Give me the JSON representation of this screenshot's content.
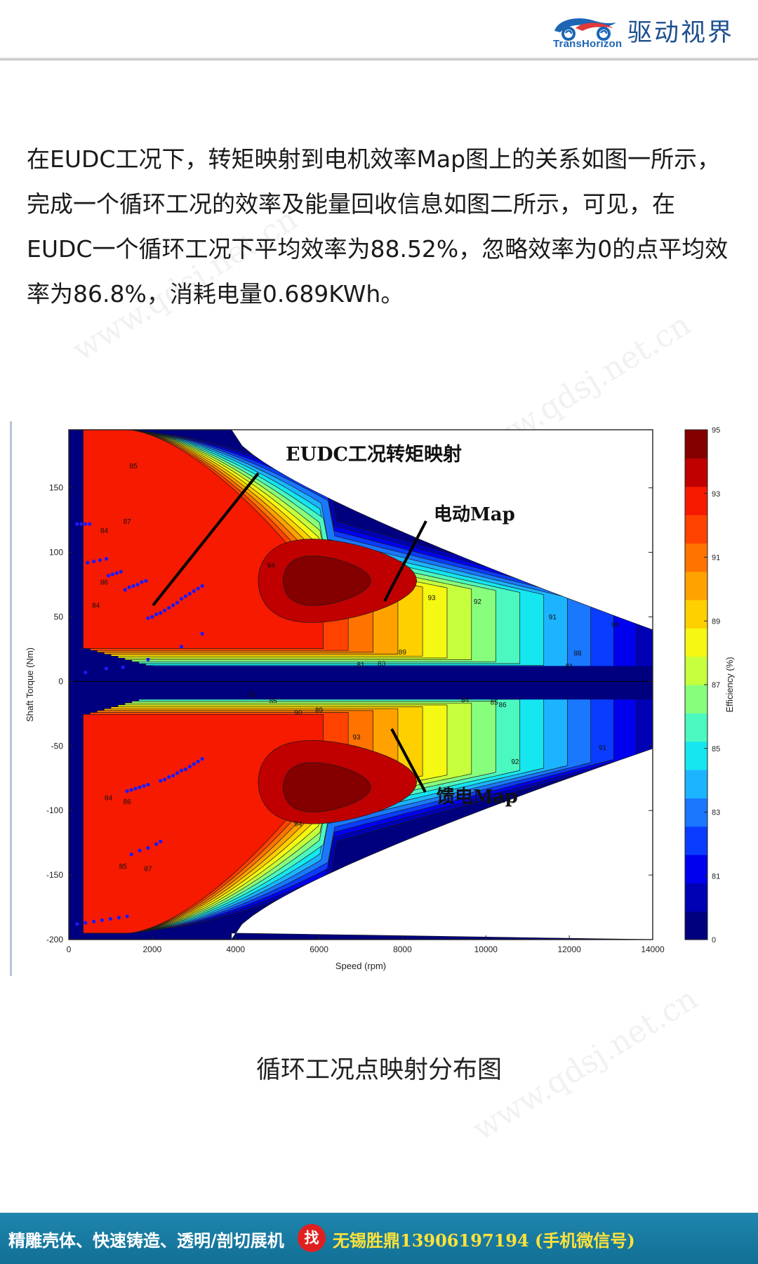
{
  "header": {
    "brand_en": "TransHorizon",
    "brand_cn": "驱动视界",
    "brand_color": "#1d66b5",
    "logo_icon": "car-swirl-logo-icon"
  },
  "paragraph": "在EUDC工况下，转矩映射到电机效率Map图上的关系如图一所示，完成一个循环工况的效率及能量回收信息如图二所示，可见，在EUDC一个循环工况下平均效率为88.52%，忽略效率为0的点平均效率为86.8%，消耗电量0.689KWh。",
  "watermark": "www.qdsj.net.cn",
  "caption": "循环工况点映射分布图",
  "footer": {
    "left_text": "精雕壳体、快速铸造、透明/剖切展机",
    "badge": "找",
    "right_text": "无锡胜鼎13906197194 (手机微信号)",
    "bg_color": "#1a7fa6",
    "highlight_color": "#ffe23a"
  },
  "chart_data": {
    "type": "heatmap",
    "subtype": "filled-contour efficiency map with scatter overlay",
    "title": "",
    "xlabel": "Speed (rpm)",
    "ylabel": "Shaft Torque (Nm)",
    "xlim": [
      0,
      14000
    ],
    "ylim": [
      -200,
      195
    ],
    "xticks": [
      0,
      2000,
      4000,
      6000,
      8000,
      10000,
      12000,
      14000
    ],
    "yticks": [
      -200,
      -150,
      -100,
      -50,
      0,
      50,
      100,
      150
    ],
    "colorbar": {
      "label": "Efficiency (%)",
      "range": [
        0,
        95
      ],
      "tick_labels": [
        "95",
        "93",
        "91",
        "89",
        "87",
        "85",
        "83",
        "81",
        "0"
      ],
      "bands": [
        "#00007f",
        "#0000b5",
        "#0000ee",
        "#0a3cff",
        "#1a78ff",
        "#1cb4ff",
        "#15e6f0",
        "#4bf8c0",
        "#88ff7c",
        "#c6ff3c",
        "#f4f812",
        "#ffd000",
        "#ffa200",
        "#ff7400",
        "#ff4200",
        "#f51a00",
        "#c00000",
        "#840000"
      ]
    },
    "regions": [
      {
        "name": "电动Map",
        "peak_efficiency": 94,
        "peak_speed": 6300,
        "peak_torque": 78
      },
      {
        "name": "馈电Map",
        "peak_efficiency": 94,
        "peak_speed": 6300,
        "peak_torque": -80
      }
    ],
    "contour_labels": [
      {
        "text": "85",
        "x": 1550,
        "y": 165
      },
      {
        "text": "87",
        "x": 1400,
        "y": 122
      },
      {
        "text": "84",
        "x": 850,
        "y": 115
      },
      {
        "text": "86",
        "x": 850,
        "y": 75
      },
      {
        "text": "84",
        "x": 650,
        "y": 57
      },
      {
        "text": "94",
        "x": 4850,
        "y": 88
      },
      {
        "text": "93",
        "x": 8700,
        "y": 63
      },
      {
        "text": "92",
        "x": 9800,
        "y": 60
      },
      {
        "text": "91",
        "x": 11600,
        "y": 48
      },
      {
        "text": "90",
        "x": 13100,
        "y": 42
      },
      {
        "text": "89",
        "x": 8000,
        "y": 21
      },
      {
        "text": "88",
        "x": 12200,
        "y": 20
      },
      {
        "text": "83",
        "x": 7500,
        "y": 12
      },
      {
        "text": "81",
        "x": 7000,
        "y": 11
      },
      {
        "text": "81",
        "x": 12000,
        "y": 10
      },
      {
        "text": "85",
        "x": 4400,
        "y": -12
      },
      {
        "text": "85",
        "x": 4900,
        "y": -17
      },
      {
        "text": "90",
        "x": 5500,
        "y": -26
      },
      {
        "text": "89",
        "x": 6000,
        "y": -24
      },
      {
        "text": "84",
        "x": 9500,
        "y": -16
      },
      {
        "text": "85",
        "x": 10200,
        "y": -18
      },
      {
        "text": "86",
        "x": 10400,
        "y": -20
      },
      {
        "text": "93",
        "x": 6900,
        "y": -45
      },
      {
        "text": "91",
        "x": 12800,
        "y": -53
      },
      {
        "text": "92",
        "x": 10700,
        "y": -64
      },
      {
        "text": "94",
        "x": 5500,
        "y": -112
      },
      {
        "text": "84",
        "x": 950,
        "y": -92
      },
      {
        "text": "86",
        "x": 1400,
        "y": -95
      },
      {
        "text": "85",
        "x": 1300,
        "y": -145
      },
      {
        "text": "87",
        "x": 1900,
        "y": -147
      }
    ],
    "operating_points": [
      {
        "speed": 200,
        "torque": 122
      },
      {
        "speed": 300,
        "torque": 122
      },
      {
        "speed": 400,
        "torque": 122
      },
      {
        "speed": 500,
        "torque": 122
      },
      {
        "speed": 450,
        "torque": 92
      },
      {
        "speed": 600,
        "torque": 93
      },
      {
        "speed": 750,
        "torque": 94
      },
      {
        "speed": 900,
        "torque": 95
      },
      {
        "speed": 950,
        "torque": 82
      },
      {
        "speed": 1050,
        "torque": 83
      },
      {
        "speed": 1150,
        "torque": 84
      },
      {
        "speed": 1250,
        "torque": 85
      },
      {
        "speed": 1350,
        "torque": 71
      },
      {
        "speed": 1450,
        "torque": 73
      },
      {
        "speed": 1550,
        "torque": 74
      },
      {
        "speed": 1650,
        "torque": 75
      },
      {
        "speed": 1750,
        "torque": 77
      },
      {
        "speed": 1850,
        "torque": 78
      },
      {
        "speed": 1900,
        "torque": 49
      },
      {
        "speed": 2000,
        "torque": 50
      },
      {
        "speed": 2100,
        "torque": 52
      },
      {
        "speed": 2200,
        "torque": 53
      },
      {
        "speed": 2300,
        "torque": 55
      },
      {
        "speed": 2400,
        "torque": 57
      },
      {
        "speed": 2500,
        "torque": 59
      },
      {
        "speed": 2600,
        "torque": 61
      },
      {
        "speed": 2700,
        "torque": 64
      },
      {
        "speed": 2800,
        "torque": 66
      },
      {
        "speed": 2900,
        "torque": 68
      },
      {
        "speed": 3000,
        "torque": 70
      },
      {
        "speed": 3100,
        "torque": 72
      },
      {
        "speed": 3200,
        "torque": 74
      },
      {
        "speed": 2700,
        "torque": 27
      },
      {
        "speed": 3200,
        "torque": 37
      },
      {
        "speed": 1900,
        "torque": 17
      },
      {
        "speed": 400,
        "torque": 7
      },
      {
        "speed": 900,
        "torque": 10
      },
      {
        "speed": 1300,
        "torque": 11
      },
      {
        "speed": 1400,
        "torque": -85
      },
      {
        "speed": 1500,
        "torque": -84
      },
      {
        "speed": 1600,
        "torque": -83
      },
      {
        "speed": 1700,
        "torque": -82
      },
      {
        "speed": 1800,
        "torque": -81
      },
      {
        "speed": 1900,
        "torque": -80
      },
      {
        "speed": 2200,
        "torque": -77
      },
      {
        "speed": 2300,
        "torque": -76
      },
      {
        "speed": 2400,
        "torque": -74
      },
      {
        "speed": 2500,
        "torque": -73
      },
      {
        "speed": 2600,
        "torque": -71
      },
      {
        "speed": 2700,
        "torque": -69
      },
      {
        "speed": 2800,
        "torque": -68
      },
      {
        "speed": 2900,
        "torque": -66
      },
      {
        "speed": 3000,
        "torque": -64
      },
      {
        "speed": 3100,
        "torque": -62
      },
      {
        "speed": 3200,
        "torque": -60
      },
      {
        "speed": 1500,
        "torque": -134
      },
      {
        "speed": 1700,
        "torque": -131
      },
      {
        "speed": 1900,
        "torque": -129
      },
      {
        "speed": 2100,
        "torque": -126
      },
      {
        "speed": 2200,
        "torque": -124
      },
      {
        "speed": 200,
        "torque": -188
      },
      {
        "speed": 400,
        "torque": -187
      },
      {
        "speed": 600,
        "torque": -186
      },
      {
        "speed": 800,
        "torque": -185
      },
      {
        "speed": 1000,
        "torque": -184
      },
      {
        "speed": 1200,
        "torque": -183
      },
      {
        "speed": 1400,
        "torque": -182
      }
    ],
    "annotations": [
      {
        "text": "EUDC工况转矩映射"
      },
      {
        "text": "电动Map"
      },
      {
        "text": "馈电Map"
      }
    ]
  }
}
